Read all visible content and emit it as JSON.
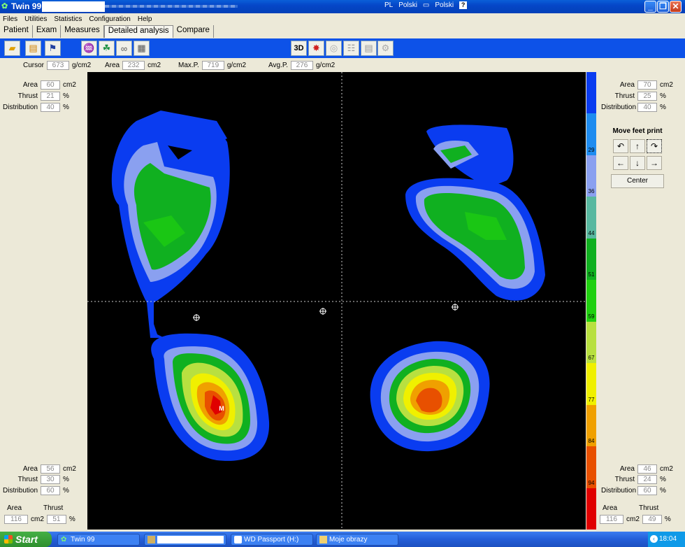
{
  "window": {
    "title": "Twin 99",
    "lang_code": "PL",
    "lang_name": "Polski",
    "keyboard": "Polski",
    "help_glyph": "?"
  },
  "menu": [
    "Files",
    "Utilities",
    "Statistics",
    "Configuration",
    "Help"
  ],
  "tabs": [
    "Patient",
    "Exam",
    "Measures",
    "Detailed analysis",
    "Compare"
  ],
  "toolbar": {
    "btn_3d": "3D",
    "chk_m": "M",
    "chk_c": "C"
  },
  "top_fields": {
    "cursor_label": "Cursor",
    "cursor_value": "673",
    "cursor_unit": "g/cm2",
    "area_label": "Area",
    "area_value": "232",
    "area_unit": "cm2",
    "maxp_label": "Max.P.",
    "maxp_value": "719",
    "maxp_unit": "g/cm2",
    "avgp_label": "Avg.P.",
    "avgp_value": "276",
    "avgp_unit": "g/cm2"
  },
  "left_front": {
    "area_label": "Area",
    "area": "60",
    "area_unit": "cm2",
    "thrust_label": "Thrust",
    "thrust": "21",
    "thrust_unit": "%",
    "dist_label": "Distribution",
    "dist": "40",
    "dist_unit": "%"
  },
  "right_front": {
    "area_label": "Area",
    "area": "70",
    "area_unit": "cm2",
    "thrust_label": "Thrust",
    "thrust": "25",
    "thrust_unit": "%",
    "dist_label": "Distribution",
    "dist": "40",
    "dist_unit": "%"
  },
  "left_rear": {
    "area_label": "Area",
    "area": "56",
    "area_unit": "cm2",
    "thrust_label": "Thrust",
    "thrust": "30",
    "thrust_unit": "%",
    "dist_label": "Distribution",
    "dist": "60",
    "dist_unit": "%"
  },
  "right_rear": {
    "area_label": "Area",
    "area": "46",
    "area_unit": "cm2",
    "thrust_label": "Thrust",
    "thrust": "24",
    "thrust_unit": "%",
    "dist_label": "Distribution",
    "dist": "60",
    "dist_unit": "%"
  },
  "left_total": {
    "area_label": "Area",
    "thrust_label": "Thrust",
    "area": "116",
    "area_unit": "cm2",
    "thrust": "51",
    "thrust_unit": "%"
  },
  "right_total": {
    "area_label": "Area",
    "thrust_label": "Thrust",
    "area": "116",
    "area_unit": "cm2",
    "thrust": "49",
    "thrust_unit": "%"
  },
  "scale": {
    "labels": [
      "",
      "29",
      "36",
      "44",
      "51",
      "59",
      "67",
      "77",
      "84",
      "94"
    ],
    "colors": [
      "#0a3cf0",
      "#1e8cf0",
      "#8aa0f0",
      "#58b8a0",
      "#10b020",
      "#20d010",
      "#b8e040",
      "#f0f000",
      "#f0a000",
      "#e85000",
      "#e00000"
    ]
  },
  "move": {
    "title": "Move feet print",
    "center": "Center"
  },
  "heatmap": {
    "max_marker": "M"
  },
  "taskbar": {
    "start": "Start",
    "items": [
      "Twin 99",
      "",
      "WD Passport (H:)",
      "Moje obrazy"
    ],
    "clock": "18:04"
  }
}
